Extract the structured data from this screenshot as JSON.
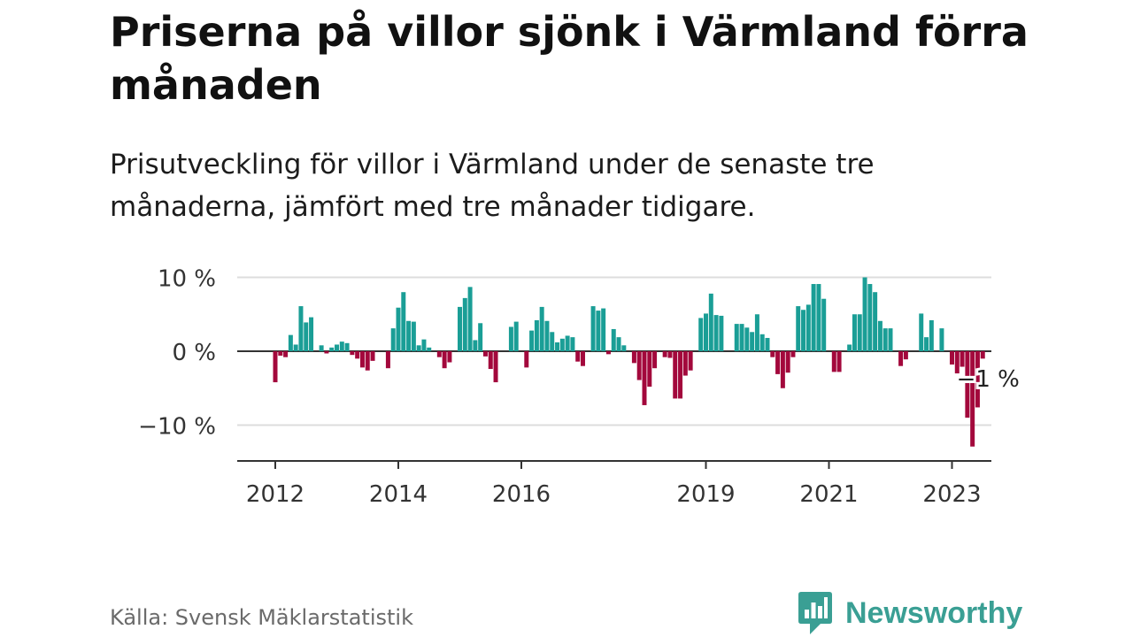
{
  "title": "Priserna på villor sjönk i Värmland förra månaden",
  "subtitle": "Prisutveckling för villor i Värmland under de senaste tre månaderna, jämfört med tre månader tidigare.",
  "source": "Källa: Svensk Mäklarstatistik",
  "brand": "Newsworthy",
  "colors": {
    "positive": "#1a9e96",
    "negative": "#a3083c",
    "brand": "#3a9f94"
  },
  "chart_data": {
    "type": "bar",
    "ylim": [
      -14,
      10
    ],
    "yticks": [
      10,
      0,
      -10
    ],
    "ytick_labels": [
      "10 %",
      "0 %",
      "−10 %"
    ],
    "xticks": [
      2012,
      2014,
      2016,
      2019,
      2021,
      2023
    ],
    "xtick_labels": [
      "2012",
      "2014",
      "2016",
      "2019",
      "2021",
      "2023"
    ],
    "x_start": "2012-01",
    "annotation": "−1 %",
    "values": [
      -4.2,
      -0.6,
      -0.8,
      2.2,
      0.9,
      6.1,
      3.9,
      4.6,
      0,
      0.8,
      -0.3,
      0.5,
      0.9,
      1.3,
      1.1,
      -0.5,
      -1,
      -2.2,
      -2.6,
      -1.3,
      0,
      0,
      -2.3,
      3.1,
      5.9,
      8,
      4.1,
      4,
      0.8,
      1.6,
      0.5,
      0,
      -0.8,
      -2.3,
      -1.5,
      0,
      6,
      7.2,
      8.7,
      1.5,
      3.8,
      -0.7,
      -2.4,
      -4.2,
      0,
      0,
      3.3,
      4,
      0,
      -2.2,
      2.8,
      4.2,
      6,
      4.1,
      2.6,
      1.2,
      1.7,
      2.1,
      1.9,
      -1.4,
      -2,
      0,
      6.1,
      5.5,
      5.8,
      -0.4,
      3,
      1.9,
      0.8,
      0,
      -1.6,
      -3.9,
      -7.3,
      -4.8,
      -2.3,
      0,
      -0.8,
      -0.9,
      -6.4,
      -6.4,
      -3.3,
      -2.6,
      0,
      4.5,
      5.1,
      7.8,
      4.9,
      4.8,
      0,
      0,
      3.7,
      3.7,
      3.2,
      2.6,
      5,
      2.3,
      1.8,
      -0.8,
      -3.1,
      -5,
      -2.9,
      -0.8,
      6.1,
      5.6,
      6.3,
      9.1,
      9.1,
      7.1,
      0,
      -2.8,
      -2.8,
      0,
      0.9,
      5,
      5,
      10,
      9.1,
      8,
      4.1,
      3.1,
      3.1,
      0,
      -2,
      -1.1,
      0,
      0,
      5.1,
      1.9,
      4.2,
      0,
      3.1,
      0,
      -1.8,
      -3,
      -2.1,
      -9,
      -12.9,
      -7.6,
      -1
    ]
  }
}
